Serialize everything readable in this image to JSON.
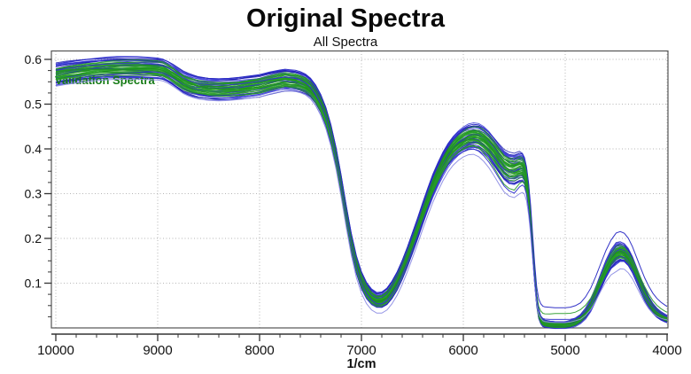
{
  "chart_data": {
    "type": "line",
    "title": "Original Spectra",
    "subtitle": "All Spectra",
    "xlabel": "1/cm",
    "ylabel": "",
    "xlim": [
      10000,
      4000
    ],
    "ylim": [
      0,
      0.62
    ],
    "x_reversed": true,
    "grid": "dotted at major ticks",
    "x_ticks": [
      10000,
      9000,
      8000,
      7000,
      6000,
      5000,
      4000
    ],
    "x_minor_step": 200,
    "y_ticks": [
      0.1,
      0.2,
      0.3,
      0.4,
      0.5,
      0.6
    ],
    "y_minor_step": 0.025,
    "legend": {
      "label": "Validation Spectra",
      "color": "#157a15"
    },
    "description": "Bundle of ~60 overlapping NIR absorbance spectra: blue calibration spectra and green validation spectra drawn over a shared mean shape",
    "colors": {
      "calibration_blue": "#1d1daf",
      "validation_green": "#1f8f1f",
      "outlier_light_blue": "#8e8ee4",
      "grid": "#b5b5b5",
      "frame": "#555555",
      "axis": "#333333",
      "text": "#111111",
      "background": "#ffffff"
    },
    "bundle": {
      "count": 54,
      "palette_blue": [
        "#1d1daf",
        "#3c3cd8",
        "#2e2ec9"
      ],
      "palette_green": [
        "#1f8f1f",
        "#27a127"
      ]
    },
    "spectrum": [
      [
        10000,
        0.566
      ],
      [
        9900,
        0.57
      ],
      [
        9800,
        0.573
      ],
      [
        9700,
        0.576
      ],
      [
        9600,
        0.578
      ],
      [
        9500,
        0.58
      ],
      [
        9400,
        0.581
      ],
      [
        9300,
        0.581
      ],
      [
        9200,
        0.581
      ],
      [
        9100,
        0.58
      ],
      [
        9000,
        0.579
      ],
      [
        8950,
        0.577
      ],
      [
        8900,
        0.572
      ],
      [
        8850,
        0.565
      ],
      [
        8800,
        0.557
      ],
      [
        8750,
        0.549
      ],
      [
        8700,
        0.544
      ],
      [
        8650,
        0.54
      ],
      [
        8600,
        0.537
      ],
      [
        8500,
        0.534
      ],
      [
        8400,
        0.533
      ],
      [
        8300,
        0.534
      ],
      [
        8200,
        0.536
      ],
      [
        8100,
        0.539
      ],
      [
        8000,
        0.542
      ],
      [
        7900,
        0.548
      ],
      [
        7800,
        0.553
      ],
      [
        7750,
        0.555
      ],
      [
        7700,
        0.554
      ],
      [
        7650,
        0.553
      ],
      [
        7600,
        0.55
      ],
      [
        7550,
        0.545
      ],
      [
        7500,
        0.536
      ],
      [
        7450,
        0.521
      ],
      [
        7400,
        0.5
      ],
      [
        7350,
        0.471
      ],
      [
        7300,
        0.432
      ],
      [
        7250,
        0.381
      ],
      [
        7200,
        0.32
      ],
      [
        7150,
        0.252
      ],
      [
        7100,
        0.19
      ],
      [
        7050,
        0.14
      ],
      [
        7000,
        0.105
      ],
      [
        6950,
        0.082
      ],
      [
        6900,
        0.068
      ],
      [
        6850,
        0.061
      ],
      [
        6800,
        0.062
      ],
      [
        6750,
        0.07
      ],
      [
        6700,
        0.085
      ],
      [
        6650,
        0.105
      ],
      [
        6600,
        0.13
      ],
      [
        6550,
        0.159
      ],
      [
        6500,
        0.19
      ],
      [
        6450,
        0.222
      ],
      [
        6400,
        0.255
      ],
      [
        6350,
        0.287
      ],
      [
        6300,
        0.317
      ],
      [
        6250,
        0.343
      ],
      [
        6200,
        0.366
      ],
      [
        6150,
        0.386
      ],
      [
        6100,
        0.401
      ],
      [
        6050,
        0.412
      ],
      [
        6000,
        0.42
      ],
      [
        5950,
        0.426
      ],
      [
        5900,
        0.428
      ],
      [
        5850,
        0.426
      ],
      [
        5800,
        0.419
      ],
      [
        5750,
        0.408
      ],
      [
        5700,
        0.394
      ],
      [
        5650,
        0.378
      ],
      [
        5600,
        0.364
      ],
      [
        5550,
        0.356
      ],
      [
        5500,
        0.354
      ],
      [
        5450,
        0.359
      ],
      [
        5420,
        0.358
      ],
      [
        5400,
        0.35
      ],
      [
        5380,
        0.33
      ],
      [
        5360,
        0.295
      ],
      [
        5340,
        0.245
      ],
      [
        5320,
        0.18
      ],
      [
        5300,
        0.115
      ],
      [
        5280,
        0.062
      ],
      [
        5260,
        0.032
      ],
      [
        5240,
        0.018
      ],
      [
        5220,
        0.012
      ],
      [
        5200,
        0.01
      ],
      [
        5150,
        0.008
      ],
      [
        5100,
        0.007
      ],
      [
        5050,
        0.007
      ],
      [
        5000,
        0.007
      ],
      [
        4950,
        0.009
      ],
      [
        4900,
        0.013
      ],
      [
        4850,
        0.02
      ],
      [
        4800,
        0.032
      ],
      [
        4750,
        0.05
      ],
      [
        4700,
        0.075
      ],
      [
        4650,
        0.103
      ],
      [
        4600,
        0.13
      ],
      [
        4550,
        0.152
      ],
      [
        4500,
        0.166
      ],
      [
        4460,
        0.17
      ],
      [
        4420,
        0.167
      ],
      [
        4380,
        0.157
      ],
      [
        4340,
        0.14
      ],
      [
        4300,
        0.118
      ],
      [
        4260,
        0.096
      ],
      [
        4220,
        0.075
      ],
      [
        4180,
        0.058
      ],
      [
        4140,
        0.044
      ],
      [
        4100,
        0.034
      ],
      [
        4060,
        0.027
      ],
      [
        4020,
        0.022
      ],
      [
        4000,
        0.02
      ]
    ],
    "band_halfwidth_profile": [
      [
        10000,
        0.023
      ],
      [
        9000,
        0.022
      ],
      [
        8600,
        0.023
      ],
      [
        8000,
        0.023
      ],
      [
        7700,
        0.022
      ],
      [
        7400,
        0.02
      ],
      [
        7000,
        0.018
      ],
      [
        6850,
        0.015
      ],
      [
        6500,
        0.022
      ],
      [
        6200,
        0.025
      ],
      [
        5900,
        0.027
      ],
      [
        5700,
        0.03
      ],
      [
        5550,
        0.033
      ],
      [
        5450,
        0.032
      ],
      [
        5360,
        0.025
      ],
      [
        5280,
        0.012
      ],
      [
        5240,
        0.008
      ],
      [
        5000,
        0.007
      ],
      [
        4850,
        0.009
      ],
      [
        4700,
        0.014
      ],
      [
        4500,
        0.022
      ],
      [
        4300,
        0.016
      ],
      [
        4150,
        0.011
      ],
      [
        4000,
        0.008
      ]
    ],
    "outlier_offsets": [
      {
        "color": "#8e8ee4",
        "anchors": [
          [
            10000,
            -0.026
          ],
          [
            9000,
            -0.025
          ],
          [
            8000,
            -0.026
          ],
          [
            7500,
            -0.024
          ],
          [
            7000,
            -0.028
          ],
          [
            6850,
            -0.028
          ],
          [
            6600,
            -0.033
          ],
          [
            6300,
            -0.037
          ],
          [
            6000,
            -0.038
          ],
          [
            5900,
            -0.04
          ],
          [
            5750,
            -0.05
          ],
          [
            5600,
            -0.06
          ],
          [
            5500,
            -0.063
          ],
          [
            5430,
            -0.058
          ],
          [
            5350,
            -0.038
          ],
          [
            5300,
            -0.015
          ],
          [
            5240,
            0.004
          ],
          [
            5100,
            0.005
          ],
          [
            5000,
            0.005
          ],
          [
            4900,
            0.003
          ],
          [
            4800,
            -0.004
          ],
          [
            4650,
            -0.02
          ],
          [
            4500,
            -0.04
          ],
          [
            4380,
            -0.034
          ],
          [
            4250,
            -0.021
          ],
          [
            4100,
            -0.008
          ],
          [
            4000,
            -0.002
          ]
        ]
      },
      {
        "color": "#2828c4",
        "anchors": [
          [
            10000,
            0.024
          ],
          [
            9000,
            0.023
          ],
          [
            8000,
            0.024
          ],
          [
            7000,
            0.02
          ],
          [
            6850,
            0.018
          ],
          [
            6000,
            0.026
          ],
          [
            5900,
            0.027
          ],
          [
            5500,
            0.032
          ],
          [
            5360,
            0.03
          ],
          [
            5280,
            0.03
          ],
          [
            5240,
            0.036
          ],
          [
            5150,
            0.038
          ],
          [
            5000,
            0.038
          ],
          [
            4850,
            0.036
          ],
          [
            4700,
            0.04
          ],
          [
            4500,
            0.046
          ],
          [
            4400,
            0.044
          ],
          [
            4250,
            0.038
          ],
          [
            4100,
            0.032
          ],
          [
            4000,
            0.028
          ]
        ]
      },
      {
        "color": "#2f9e2f",
        "anchors": [
          [
            10000,
            -0.012
          ],
          [
            8000,
            -0.012
          ],
          [
            6850,
            -0.013
          ],
          [
            5900,
            -0.02
          ],
          [
            5600,
            -0.043
          ],
          [
            5500,
            -0.046
          ],
          [
            5360,
            -0.02
          ],
          [
            5280,
            0.012
          ],
          [
            5240,
            0.02
          ],
          [
            5100,
            0.025
          ],
          [
            5000,
            0.025
          ],
          [
            4850,
            0.021
          ],
          [
            4700,
            0.014
          ],
          [
            4550,
            0.008
          ],
          [
            4400,
            0.011
          ],
          [
            4200,
            0.018
          ],
          [
            4000,
            0.015
          ]
        ]
      },
      {
        "color": "#3333cf",
        "anchors": [
          [
            10000,
            0.01
          ],
          [
            8000,
            0.009
          ],
          [
            6850,
            -0.007
          ],
          [
            5900,
            -0.028
          ],
          [
            5500,
            -0.053
          ],
          [
            5360,
            -0.028
          ],
          [
            5280,
            0.004
          ],
          [
            5240,
            0.009
          ],
          [
            5100,
            0.012
          ],
          [
            5000,
            0.012
          ],
          [
            4800,
            0.005
          ],
          [
            4500,
            -0.024
          ],
          [
            4300,
            -0.01
          ],
          [
            4150,
            0.003
          ],
          [
            4000,
            0.005
          ]
        ]
      }
    ]
  }
}
